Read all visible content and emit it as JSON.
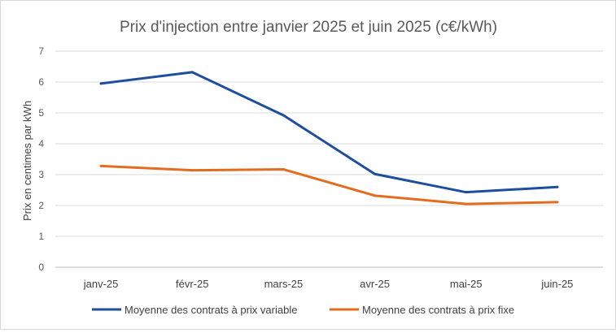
{
  "chart_data": {
    "type": "line",
    "title": "Prix d'injection entre janvier 2025 et juin 2025 (c€/kWh)",
    "xlabel": "",
    "ylabel": "Prix en centimes par kWh",
    "categories": [
      "janv-25",
      "févr-25",
      "mars-25",
      "avr-25",
      "mai-25",
      "juin-25"
    ],
    "ylim": [
      0,
      7
    ],
    "yticks": [
      "0",
      "1",
      "2",
      "3",
      "4",
      "5",
      "6",
      "7"
    ],
    "grid": true,
    "legend_position": "bottom",
    "series": [
      {
        "name": "Moyenne des contrats à prix variable",
        "color": "#1f4e9e",
        "values": [
          5.95,
          6.32,
          4.92,
          3.02,
          2.43,
          2.6
        ]
      },
      {
        "name": "Moyenne des contrats à prix fixe",
        "color": "#e46c1f",
        "values": [
          3.28,
          3.14,
          3.17,
          2.32,
          2.05,
          2.11
        ]
      }
    ]
  }
}
